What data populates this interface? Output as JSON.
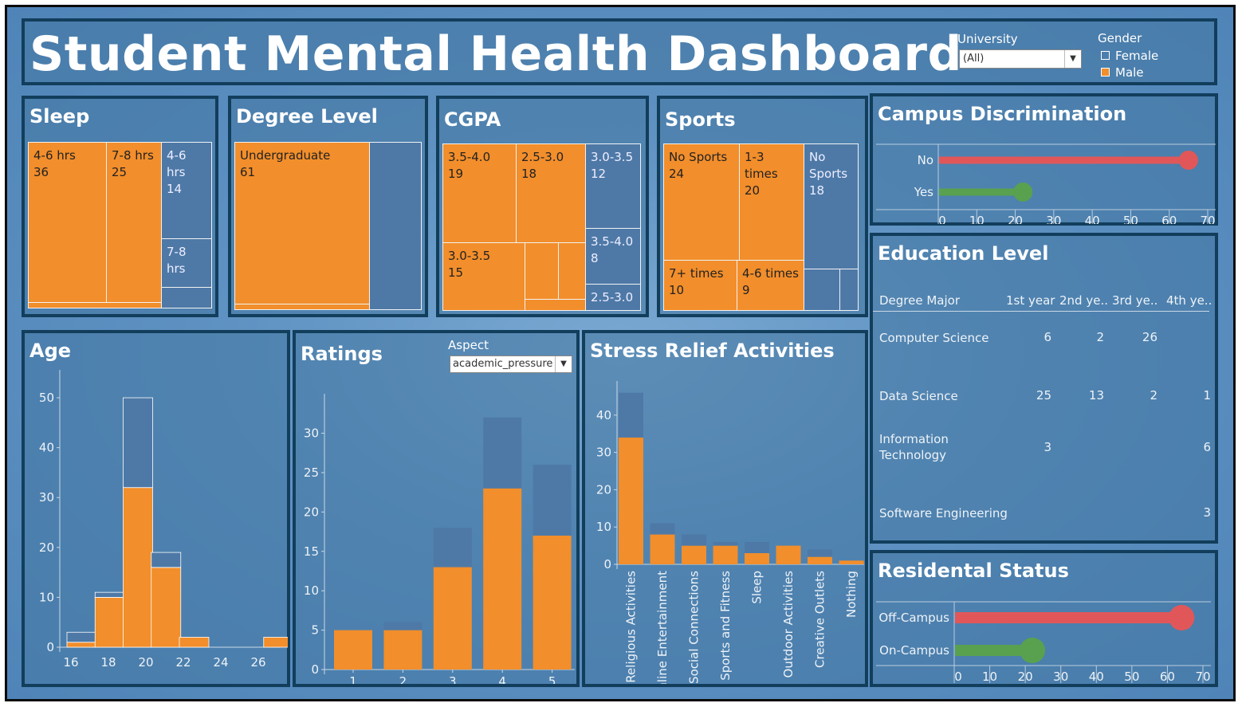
{
  "title": "Student Mental Health Dashboard",
  "filters": {
    "university_label": "University",
    "university_value": "(All)",
    "gender_label": "Gender",
    "gender_items": [
      {
        "label": "Female",
        "color": "transparent"
      },
      {
        "label": "Male",
        "color": "#f28e2b"
      }
    ]
  },
  "colors": {
    "orange": "#f28e2b",
    "blue": "#4e79a7",
    "red": "#e15759",
    "green": "#59a14f",
    "border": "#123e5c"
  },
  "sleep": {
    "title": "Sleep",
    "cells": [
      {
        "l1": "4-6 hrs",
        "l2": "36"
      },
      {
        "l1": "7-8 hrs",
        "l2": "25"
      },
      {
        "l1": "4-6",
        "l2": "hrs",
        "l3": "14"
      },
      {
        "l1": "7-8",
        "l2": "hrs"
      }
    ]
  },
  "degree": {
    "title": "Degree Level",
    "cells": [
      {
        "l1": "Undergraduate",
        "l2": "61"
      }
    ]
  },
  "cgpa": {
    "title": "CGPA",
    "cells": [
      {
        "l1": "3.5-4.0",
        "l2": "19"
      },
      {
        "l1": "2.5-3.0",
        "l2": "18"
      },
      {
        "l1": "3.0-3.5",
        "l2": "12"
      },
      {
        "l1": "3.0-3.5",
        "l2": "15"
      },
      {
        "l1": "3.5-4.0",
        "l2": "8"
      },
      {
        "l1": "2.5-3.0"
      }
    ]
  },
  "sports": {
    "title": "Sports",
    "cells": [
      {
        "l1": "No Sports",
        "l2": "24"
      },
      {
        "l1": "1-3",
        "l2": "times",
        "l3": "20"
      },
      {
        "l1": "No",
        "l2": "Sports",
        "l3": "18"
      },
      {
        "l1": "7+ times",
        "l2": "10"
      },
      {
        "l1": "4-6 times",
        "l2": "9"
      }
    ]
  },
  "campus": {
    "title": "Campus Discrimination",
    "categories": [
      "No",
      "Yes"
    ],
    "values": [
      65,
      22
    ],
    "colors": [
      "#e15759",
      "#59a14f"
    ],
    "xticks": [
      "0",
      "10",
      "20",
      "30",
      "40",
      "50",
      "60",
      "70"
    ],
    "xmax": 70
  },
  "education": {
    "title": "Education Level",
    "headers": [
      "Degree Major",
      "1st year",
      "2nd ye..",
      "3rd ye..",
      "4th ye.."
    ],
    "rows": [
      {
        "major": [
          "Computer Science"
        ],
        "values": [
          "6",
          "2",
          "26",
          ""
        ]
      },
      {
        "major": [
          "Data Science"
        ],
        "values": [
          "25",
          "13",
          "2",
          "1"
        ]
      },
      {
        "major": [
          "Information",
          "Technology"
        ],
        "values": [
          "3",
          "",
          "",
          "6"
        ]
      },
      {
        "major": [
          "Software Engineering"
        ],
        "values": [
          "",
          "",
          "",
          "3"
        ]
      }
    ]
  },
  "residential": {
    "title": "Residental Status",
    "categories": [
      "Off-Campus",
      "On-Campus"
    ],
    "values": [
      64,
      22
    ],
    "colors": [
      "#e15759",
      "#59a14f"
    ],
    "xticks": [
      "0",
      "10",
      "20",
      "30",
      "40",
      "50",
      "60",
      "70"
    ],
    "xmax": 70
  },
  "chart_data": [
    {
      "type": "bar",
      "title": "Age",
      "categories": [
        "16",
        "17",
        "18",
        "19",
        "20",
        "21",
        "22",
        "23",
        "24",
        "25",
        "26"
      ],
      "series": [
        {
          "name": "Male",
          "values": [
            1,
            10,
            32,
            16,
            2,
            0,
            0,
            2
          ]
        },
        {
          "name": "Female",
          "values": [
            2,
            1,
            18,
            3,
            0,
            0,
            0,
            0
          ]
        }
      ],
      "bins": [
        [
          16,
          17
        ],
        [
          17,
          18.6
        ],
        [
          18.6,
          20.1
        ],
        [
          20.1,
          21.7
        ],
        [
          21.7,
          23.2
        ],
        [
          23.2,
          24.7
        ],
        [
          24.7,
          26.3
        ],
        [
          26.3,
          27.8
        ]
      ],
      "binsx": [
        16,
        17.5,
        19,
        20.5,
        22,
        23.5,
        25,
        26.5
      ],
      "xticks": [
        "16",
        "18",
        "20",
        "22",
        "24",
        "26"
      ],
      "yticks": [
        "0",
        "10",
        "20",
        "30",
        "40",
        "50"
      ],
      "ylim": [
        0,
        54
      ]
    },
    {
      "type": "bar",
      "title": "Ratings",
      "aspect_label": "Aspect",
      "aspect_value": "academic_pressure",
      "categories": [
        "1",
        "2",
        "3",
        "4",
        "5"
      ],
      "series": [
        {
          "name": "Male",
          "values": [
            5,
            5,
            13,
            23,
            17
          ]
        },
        {
          "name": "Female",
          "values": [
            0,
            1,
            5,
            9,
            9
          ]
        }
      ],
      "yticks": [
        "0",
        "5",
        "10",
        "15",
        "20",
        "25",
        "30"
      ],
      "ylim": [
        0,
        34
      ]
    },
    {
      "type": "bar",
      "title": "Stress Relief Activities",
      "categories": [
        "Religious Activities",
        "Online Entertainment",
        "Social Connections",
        "Sports and Fitness",
        "Sleep",
        "Outdoor Activities",
        "Creative Outlets",
        "Nothing"
      ],
      "series": [
        {
          "name": "Male",
          "values": [
            34,
            8,
            5,
            5,
            3,
            5,
            2,
            1
          ]
        },
        {
          "name": "Female",
          "values": [
            12,
            3,
            3,
            1,
            3,
            0,
            2,
            0
          ]
        }
      ],
      "yticks": [
        "0",
        "10",
        "20",
        "30",
        "40"
      ],
      "ylim": [
        0,
        47
      ]
    }
  ]
}
